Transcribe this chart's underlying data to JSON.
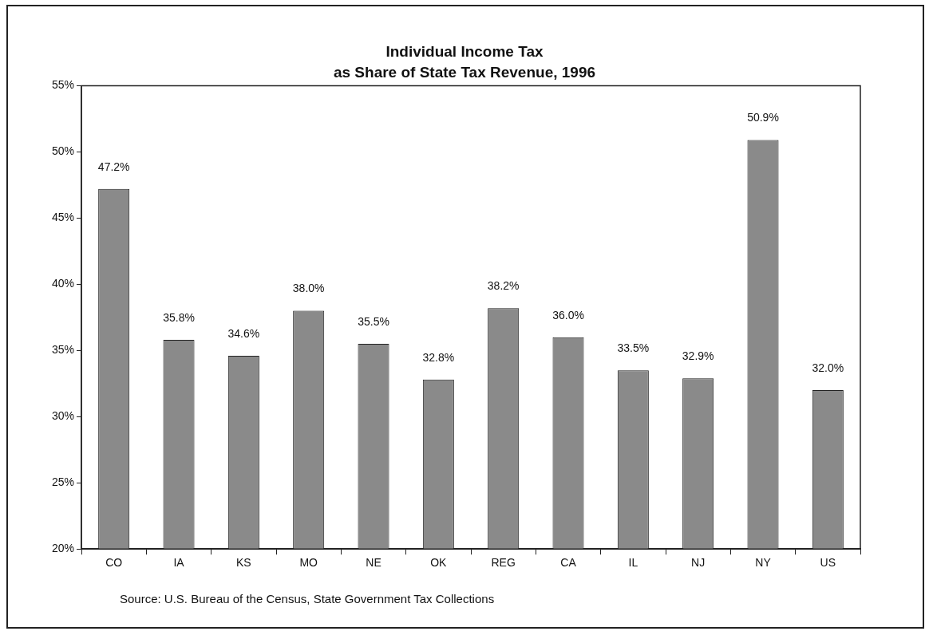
{
  "chart_data": {
    "type": "bar",
    "title": "Individual Income Tax",
    "subtitle": "as Share of State Tax Revenue, 1996",
    "categories": [
      "CO",
      "IA",
      "KS",
      "MO",
      "NE",
      "OK",
      "REG",
      "CA",
      "IL",
      "NJ",
      "NY",
      "US"
    ],
    "values": [
      47.2,
      35.8,
      34.6,
      38.0,
      35.5,
      32.8,
      38.2,
      36.0,
      33.5,
      32.9,
      50.9,
      32.0
    ],
    "value_labels": [
      "47.2%",
      "35.8%",
      "34.6%",
      "38.0%",
      "35.5%",
      "32.8%",
      "38.2%",
      "36.0%",
      "33.5%",
      "32.9%",
      "50.9%",
      "32.0%"
    ],
    "color": "#8a8a8a",
    "ylim": [
      20,
      55
    ],
    "yticks": [
      {
        "value": 20,
        "label": "20%"
      },
      {
        "value": 25,
        "label": "25%"
      },
      {
        "value": 30,
        "label": "30%"
      },
      {
        "value": 35,
        "label": "35%"
      },
      {
        "value": 40,
        "label": "40%"
      },
      {
        "value": 45,
        "label": "45%"
      },
      {
        "value": 50,
        "label": "50%"
      },
      {
        "value": 55,
        "label": "55%"
      }
    ],
    "grid": false,
    "legend": false,
    "annotations": [
      "Source:  U.S. Bureau of the Census, State Government Tax Collections"
    ]
  }
}
